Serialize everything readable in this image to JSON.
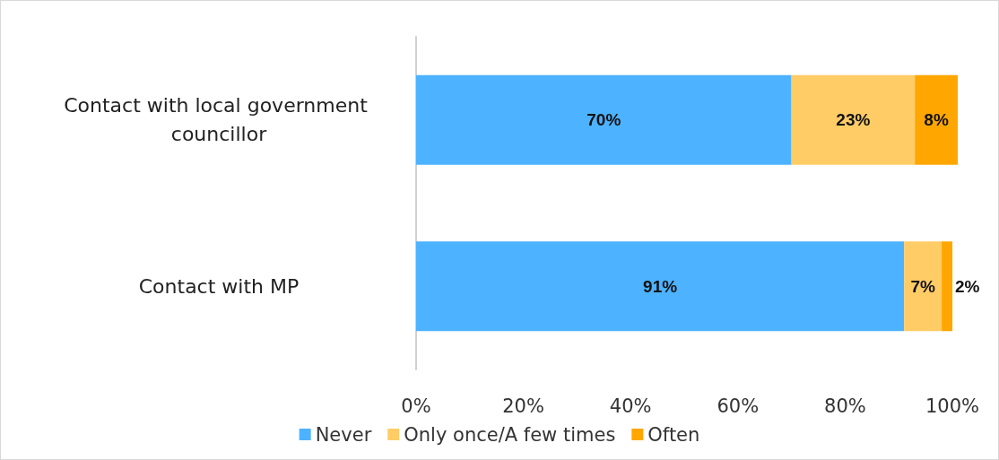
{
  "chart_data": {
    "type": "bar",
    "orientation": "horizontal",
    "stacked": true,
    "categories": [
      "Contact with local government councillor",
      "Contact with MP"
    ],
    "series": [
      {
        "name": "Never",
        "color": "#4db2ff",
        "values": [
          70,
          91
        ],
        "value_labels": [
          "70%",
          "91%"
        ]
      },
      {
        "name": "Only once/A few times",
        "color": "#ffcc66",
        "values": [
          23,
          7
        ],
        "value_labels": [
          "23%",
          "7%"
        ]
      },
      {
        "name": "Often",
        "color": "#ffa600",
        "values": [
          8,
          2
        ],
        "value_labels": [
          "8%",
          "2%"
        ]
      }
    ],
    "xlim": [
      0,
      101
    ],
    "xticks": [
      {
        "value": 0,
        "label": "0%"
      },
      {
        "value": 20,
        "label": "20%"
      },
      {
        "value": 40,
        "label": "40%"
      },
      {
        "value": 60,
        "label": "60%"
      },
      {
        "value": 80,
        "label": "80%"
      },
      {
        "value": 100,
        "label": "100%"
      }
    ],
    "grid": false,
    "legend": "bottom"
  }
}
